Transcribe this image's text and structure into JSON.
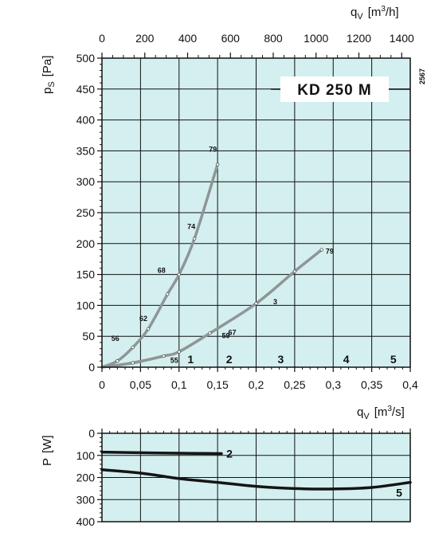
{
  "chart_data": [
    {
      "type": "line",
      "title": "KD 250 M",
      "side_code": "2567",
      "top_axis": {
        "label_symbol": "q",
        "label_sub": "V",
        "label_unit_pre": "[m",
        "label_unit_sup": "3",
        "label_unit_post": "/h]",
        "ticks": [
          "0",
          "200",
          "400",
          "600",
          "800",
          "1000",
          "1200",
          "1400"
        ],
        "range": [
          0,
          1440
        ]
      },
      "y_axis": {
        "label_symbol": "p",
        "label_sub": "S",
        "label_unit": "[Pa]",
        "ticks": [
          "0",
          "50",
          "100",
          "150",
          "200",
          "250",
          "300",
          "350",
          "400",
          "450",
          "500"
        ],
        "range": [
          0,
          500
        ]
      },
      "x_axis": {
        "label_symbol": "q",
        "label_sub": "V",
        "label_unit_pre": "[m",
        "label_unit_sup": "3",
        "label_unit_post": "/s]",
        "ticks": [
          "0",
          "0,05",
          "0,1",
          "0,15",
          "0,2",
          "0,25",
          "0,3",
          "0,35",
          "0,4"
        ],
        "range": [
          0,
          0.4
        ]
      },
      "grid": true,
      "series": [
        {
          "points": [
            [
              0,
              0
            ],
            [
              0.02,
              10
            ],
            [
              0.04,
              32
            ],
            [
              0.06,
              62
            ],
            [
              0.085,
              118
            ],
            [
              0.1,
              150
            ],
            [
              0.12,
              208
            ],
            [
              0.15,
              328
            ]
          ],
          "labels": [
            {
              "text": "56",
              "x": 0.04,
              "y": 32
            },
            {
              "text": "62",
              "x": 0.06,
              "y": 62
            },
            {
              "text": "68",
              "x": 0.1,
              "y": 150
            },
            {
              "text": "74",
              "x": 0.12,
              "y": 208
            },
            {
              "text": "79",
              "x": 0.15,
              "y": 328
            }
          ]
        },
        {
          "points": [
            [
              0,
              0
            ],
            [
              0.04,
              7
            ],
            [
              0.08,
              18
            ],
            [
              0.1,
              25
            ],
            [
              0.14,
              55
            ],
            [
              0.2,
              103
            ],
            [
              0.25,
              155
            ],
            [
              0.285,
              190
            ]
          ],
          "labels": [
            {
              "text": "55",
              "x": 0.1,
              "y": 25
            },
            {
              "text": "59",
              "x": 0.14,
              "y": 55
            },
            {
              "text": "67",
              "x": 0.14,
              "y": 55
            },
            {
              "text": "3",
              "x": 0.2,
              "y": 103
            },
            {
              "text": "79",
              "x": 0.285,
              "y": 190
            }
          ]
        }
      ],
      "zones": [
        {
          "label": "1",
          "x": 0.115
        },
        {
          "label": "2",
          "x": 0.165
        },
        {
          "label": "3",
          "x": 0.232
        },
        {
          "label": "4",
          "x": 0.317
        },
        {
          "label": "5",
          "x": 0.378
        }
      ]
    },
    {
      "type": "line",
      "y_axis": {
        "label_symbol": "P",
        "label_unit": "[W]",
        "ticks": [
          "0",
          "100",
          "200",
          "300",
          "400"
        ],
        "range": [
          0,
          400
        ],
        "inverted": true
      },
      "x_range": [
        0,
        0.4
      ],
      "grid": true,
      "series": [
        {
          "name": "2",
          "points": [
            [
              0,
              85
            ],
            [
              0.05,
              88
            ],
            [
              0.1,
              90
            ],
            [
              0.155,
              92
            ]
          ]
        },
        {
          "name": "5",
          "points": [
            [
              0,
              165
            ],
            [
              0.05,
              180
            ],
            [
              0.1,
              205
            ],
            [
              0.15,
              222
            ],
            [
              0.2,
              240
            ],
            [
              0.25,
              250
            ],
            [
              0.3,
              252
            ],
            [
              0.35,
              245
            ],
            [
              0.4,
              222
            ]
          ]
        }
      ]
    }
  ]
}
